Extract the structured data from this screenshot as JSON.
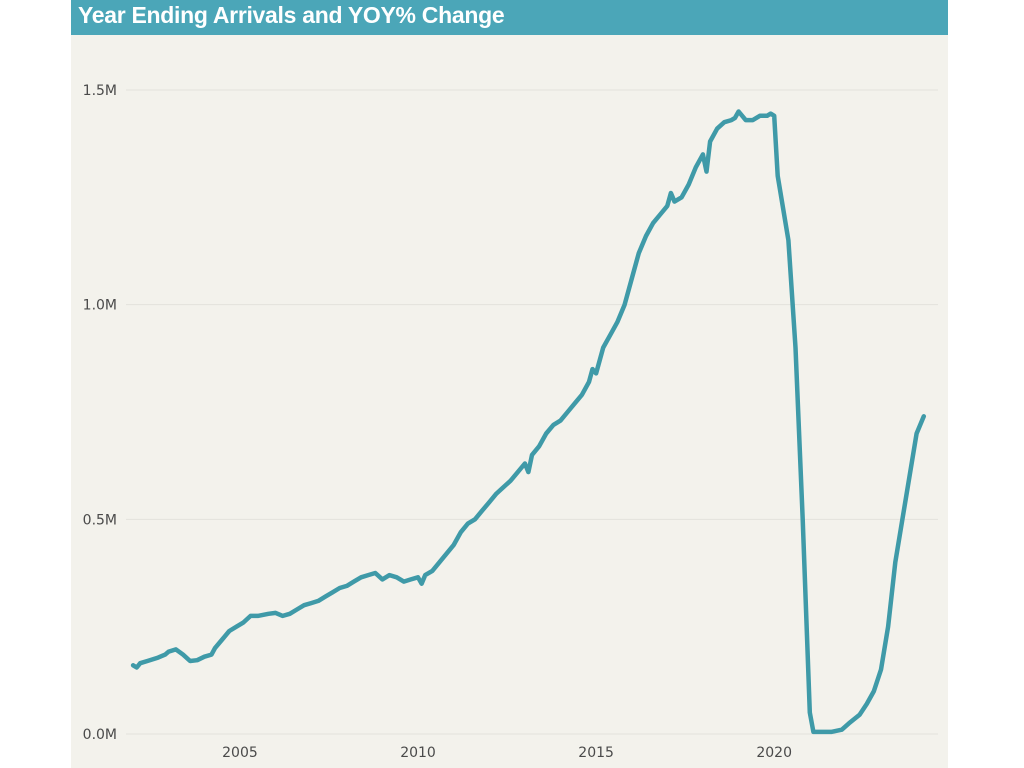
{
  "title": "Year Ending Arrivals and YOY% Change",
  "colors": {
    "line": "#3f9aa8",
    "title_bar": "#4ba6b8",
    "background": "#f3f2ec",
    "gridline": "#e3e2dc"
  },
  "chart_data": {
    "type": "line",
    "title": "Year Ending Arrivals and YOY% Change",
    "xlabel": "",
    "ylabel": "",
    "xlim": [
      2001.8,
      2024.6
    ],
    "ylim": [
      0,
      1.5
    ],
    "x_ticks": [
      {
        "value": 2005,
        "label": "2005"
      },
      {
        "value": 2010,
        "label": "2010"
      },
      {
        "value": 2015,
        "label": "2015"
      },
      {
        "value": 2020,
        "label": "2020"
      }
    ],
    "y_ticks": [
      {
        "value": 0,
        "label": "0.0M"
      },
      {
        "value": 0.5,
        "label": "0.5M"
      },
      {
        "value": 1.0,
        "label": "1.0M"
      },
      {
        "value": 1.5,
        "label": "1.5M"
      }
    ],
    "grid": true,
    "series": [
      {
        "name": "",
        "x": [
          2002.0,
          2002.1,
          2002.2,
          2002.4,
          2002.7,
          2002.9,
          2003.0,
          2003.2,
          2003.4,
          2003.6,
          2003.8,
          2004.0,
          2004.2,
          2004.3,
          2004.5,
          2004.7,
          2004.9,
          2005.1,
          2005.3,
          2005.5,
          2005.8,
          2006.0,
          2006.2,
          2006.4,
          2006.6,
          2006.8,
          2007.0,
          2007.2,
          2007.4,
          2007.6,
          2007.8,
          2008.0,
          2008.2,
          2008.4,
          2008.6,
          2008.8,
          2009.0,
          2009.2,
          2009.4,
          2009.6,
          2009.8,
          2010.0,
          2010.1,
          2010.2,
          2010.4,
          2010.6,
          2010.8,
          2011.0,
          2011.2,
          2011.4,
          2011.6,
          2011.8,
          2012.0,
          2012.2,
          2012.4,
          2012.6,
          2012.8,
          2013.0,
          2013.1,
          2013.2,
          2013.4,
          2013.6,
          2013.8,
          2014.0,
          2014.2,
          2014.4,
          2014.6,
          2014.8,
          2014.9,
          2015.0,
          2015.2,
          2015.4,
          2015.6,
          2015.8,
          2016.0,
          2016.2,
          2016.4,
          2016.6,
          2016.8,
          2017.0,
          2017.1,
          2017.2,
          2017.4,
          2017.6,
          2017.8,
          2018.0,
          2018.1,
          2018.2,
          2018.4,
          2018.6,
          2018.8,
          2018.9,
          2019.0,
          2019.2,
          2019.4,
          2019.6,
          2019.8,
          2019.9,
          2020.0,
          2020.1,
          2020.4,
          2020.6,
          2020.8,
          2021.0,
          2021.1,
          2021.3,
          2021.6,
          2021.9,
          2022.1,
          2022.4,
          2022.6,
          2022.8,
          2023.0,
          2023.2,
          2023.4,
          2023.6,
          2023.8,
          2024.0,
          2024.2
        ],
        "values": [
          0.16,
          0.155,
          0.165,
          0.17,
          0.178,
          0.185,
          0.192,
          0.197,
          0.185,
          0.17,
          0.172,
          0.18,
          0.185,
          0.2,
          0.22,
          0.24,
          0.25,
          0.26,
          0.275,
          0.275,
          0.28,
          0.282,
          0.275,
          0.28,
          0.29,
          0.3,
          0.305,
          0.31,
          0.32,
          0.33,
          0.34,
          0.345,
          0.355,
          0.365,
          0.37,
          0.375,
          0.36,
          0.37,
          0.365,
          0.355,
          0.36,
          0.365,
          0.35,
          0.37,
          0.38,
          0.4,
          0.42,
          0.44,
          0.47,
          0.49,
          0.5,
          0.52,
          0.54,
          0.56,
          0.575,
          0.59,
          0.61,
          0.63,
          0.61,
          0.65,
          0.67,
          0.7,
          0.72,
          0.73,
          0.75,
          0.77,
          0.79,
          0.82,
          0.85,
          0.84,
          0.9,
          0.93,
          0.96,
          1.0,
          1.06,
          1.12,
          1.16,
          1.19,
          1.21,
          1.23,
          1.26,
          1.24,
          1.25,
          1.28,
          1.32,
          1.35,
          1.31,
          1.38,
          1.41,
          1.425,
          1.43,
          1.435,
          1.45,
          1.43,
          1.43,
          1.44,
          1.44,
          1.445,
          1.44,
          1.3,
          1.15,
          0.9,
          0.5,
          0.05,
          0.005,
          0.005,
          0.005,
          0.01,
          0.025,
          0.045,
          0.07,
          0.1,
          0.15,
          0.25,
          0.4,
          0.5,
          0.6,
          0.7,
          0.74
        ]
      }
    ]
  }
}
